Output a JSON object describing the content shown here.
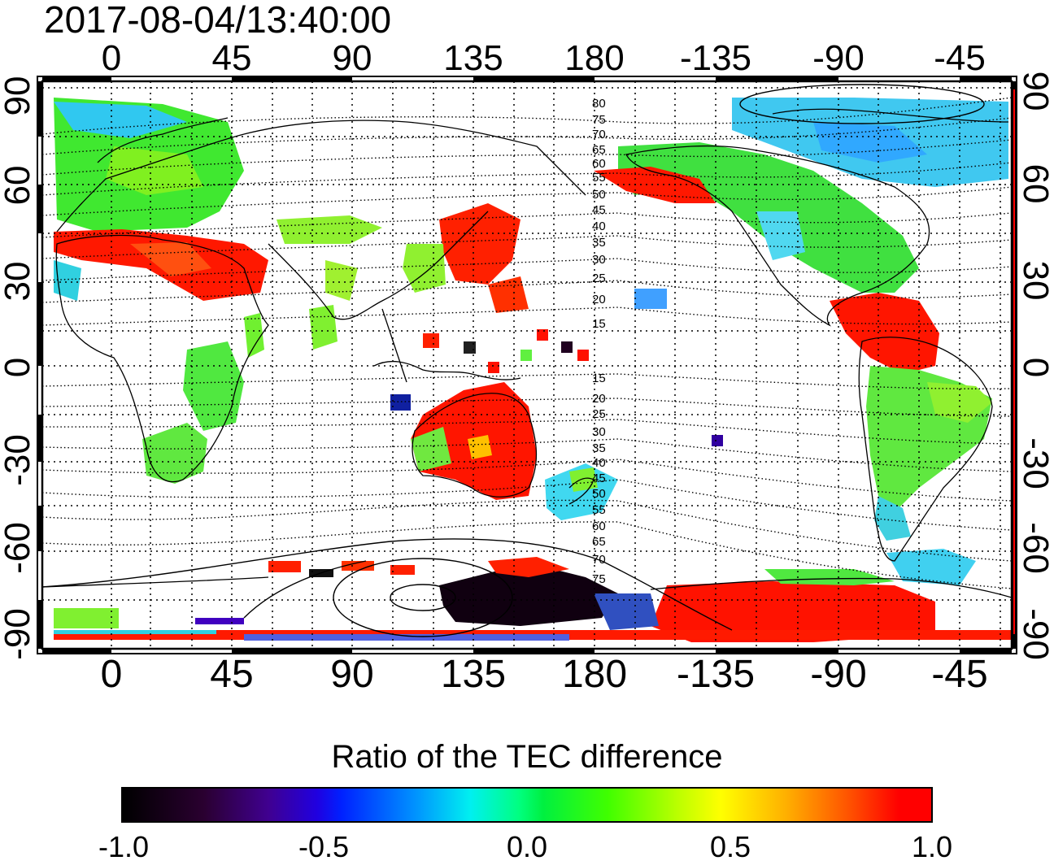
{
  "timestamp": "2017-08-04/13:40:00",
  "map": {
    "projection": "cylindrical",
    "lon_ticks_top": [
      "0",
      "45",
      "90",
      "135",
      "180",
      "-135",
      "-90",
      "-45"
    ],
    "lon_ticks_bottom": [
      "0",
      "45",
      "90",
      "135",
      "180",
      "-135",
      "-90",
      "-45"
    ],
    "lat_ticks_left": [
      "90",
      "60",
      "30",
      "0",
      "-30",
      "-60",
      "-90"
    ],
    "lat_ticks_right": [
      "90",
      "60",
      "30",
      "0",
      "-30",
      "-60",
      "-90"
    ],
    "contour_labels_north": [
      "80",
      "75",
      "70",
      "65",
      "60",
      "55",
      "50",
      "45",
      "40",
      "35",
      "30",
      "25",
      "20",
      "15"
    ],
    "contour_labels_south": [
      "15",
      "20",
      "25",
      "30",
      "35",
      "40",
      "45",
      "50",
      "55",
      "60",
      "65",
      "70",
      "75"
    ],
    "grid": true
  },
  "colorbar": {
    "title": "Ratio of the TEC difference",
    "tick_labels": [
      "-1.0",
      "-0.5",
      "0.0",
      "0.5",
      "1.0"
    ],
    "min": -1.0,
    "max": 1.0,
    "colors": [
      "#000000",
      "#4000a0",
      "#0000ff",
      "#00ffff",
      "#00ff00",
      "#ffff00",
      "#ff0000"
    ]
  }
}
